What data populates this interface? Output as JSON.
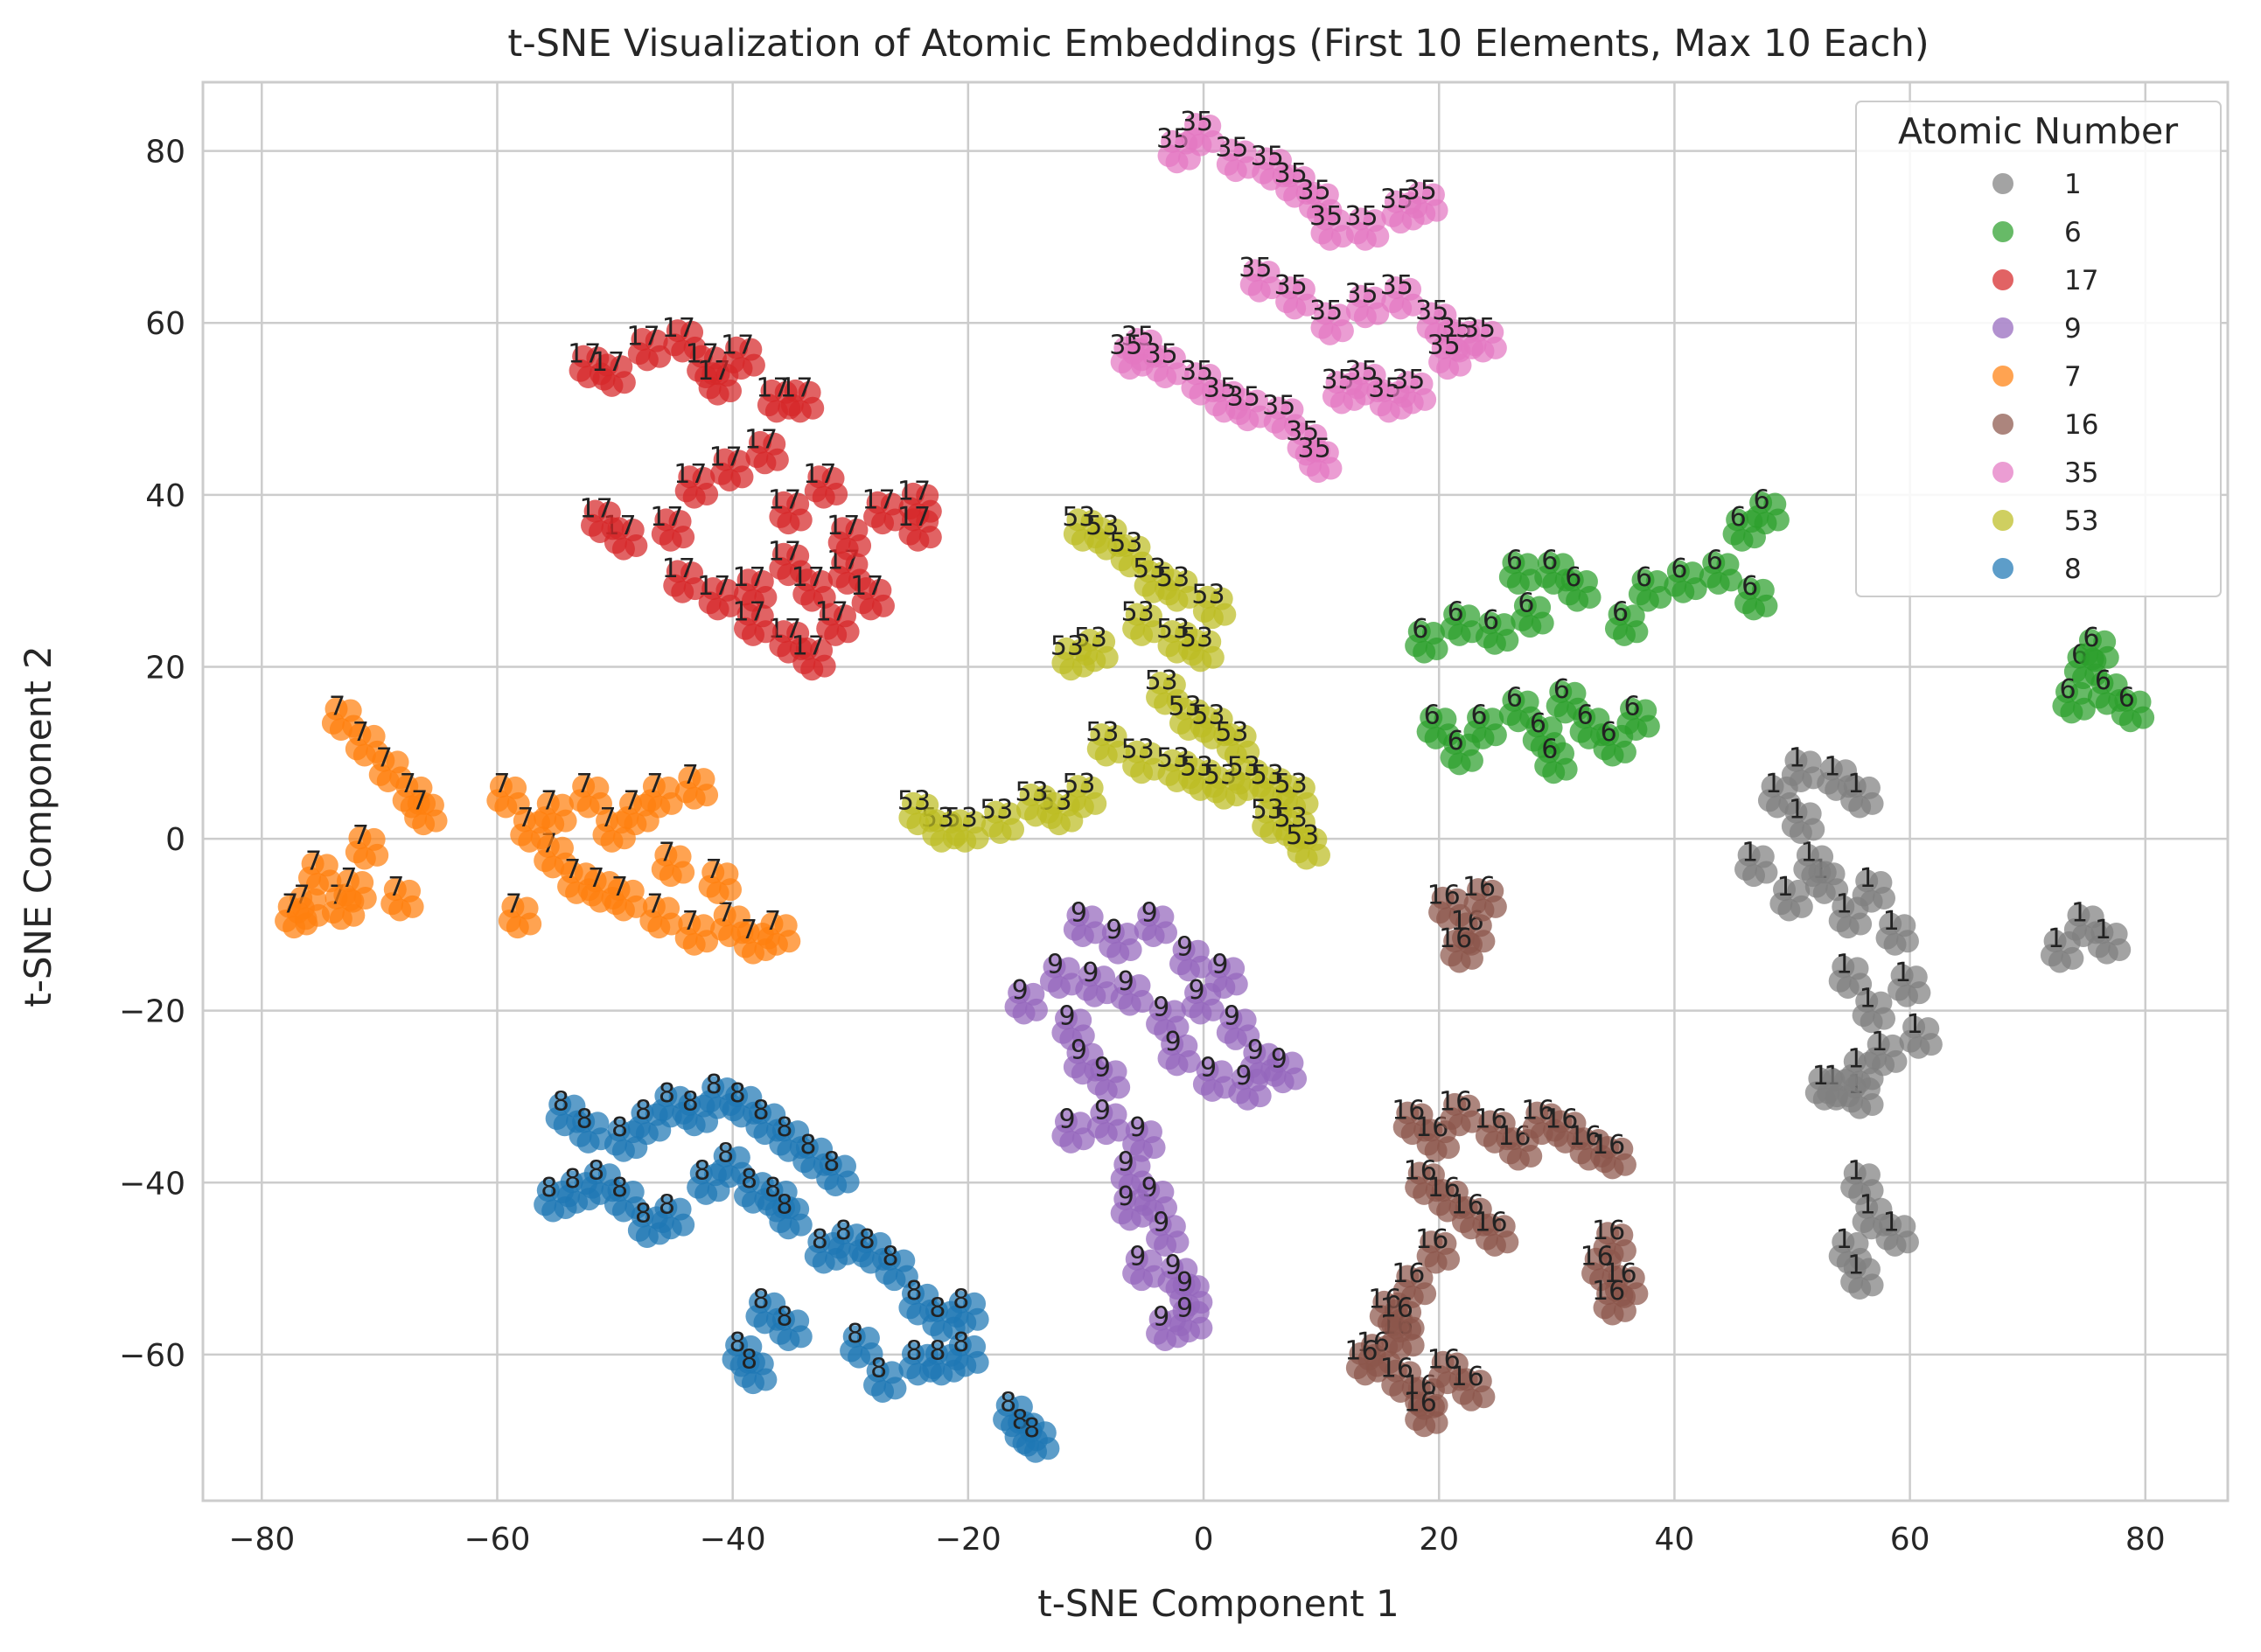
{
  "chart_data": {
    "type": "scatter",
    "title": "t-SNE Visualization of Atomic Embeddings (First 10 Elements, Max 10 Each)",
    "xlabel": "t-SNE Component 1",
    "ylabel": "t-SNE Component 2",
    "xlim": [
      -85,
      87
    ],
    "ylim": [
      -77,
      88
    ],
    "xticks": [
      -80,
      -60,
      -40,
      -20,
      0,
      20,
      40,
      60,
      80
    ],
    "yticks": [
      -60,
      -40,
      -20,
      0,
      20,
      40,
      60,
      80
    ],
    "xtick_labels": [
      "−80",
      "−60",
      "−40",
      "−20",
      "0",
      "20",
      "40",
      "60",
      "80"
    ],
    "ytick_labels": [
      "−60",
      "−40",
      "−20",
      "0",
      "20",
      "40",
      "60",
      "80"
    ],
    "grid": true,
    "legend": {
      "title": "Atomic Number",
      "placement": "top-right"
    },
    "series": [
      {
        "name": "1",
        "color": "#7f7f7f",
        "points": [
          [
            49,
            5
          ],
          [
            51,
            8
          ],
          [
            54,
            7
          ],
          [
            56,
            5
          ],
          [
            47,
            -3
          ],
          [
            50,
            -7
          ],
          [
            53,
            -5
          ],
          [
            55,
            -9
          ],
          [
            57,
            -6
          ],
          [
            59,
            -11
          ],
          [
            52,
            -3
          ],
          [
            51,
            2
          ],
          [
            55,
            -16
          ],
          [
            57,
            -20
          ],
          [
            60,
            -17
          ],
          [
            61,
            -23
          ],
          [
            58,
            -25
          ],
          [
            56,
            -30
          ],
          [
            54,
            -29
          ],
          [
            56,
            -40
          ],
          [
            57,
            -44
          ],
          [
            55,
            -48
          ],
          [
            59,
            -46
          ],
          [
            56,
            -51
          ],
          [
            73,
            -13
          ],
          [
            75,
            -10
          ],
          [
            77,
            -12
          ],
          [
            56,
            -27
          ],
          [
            53,
            -29
          ]
        ]
      },
      {
        "name": "6",
        "color": "#2ca02c",
        "points": [
          [
            19,
            23
          ],
          [
            22,
            25
          ],
          [
            25,
            24
          ],
          [
            28,
            26
          ],
          [
            30,
            31
          ],
          [
            27,
            31
          ],
          [
            32,
            29
          ],
          [
            36,
            25
          ],
          [
            38,
            29
          ],
          [
            41,
            30
          ],
          [
            44,
            31
          ],
          [
            47,
            28
          ],
          [
            48,
            38
          ],
          [
            46,
            36
          ],
          [
            20,
            13
          ],
          [
            22,
            10
          ],
          [
            24,
            13
          ],
          [
            27,
            15
          ],
          [
            29,
            12
          ],
          [
            31,
            16
          ],
          [
            33,
            13
          ],
          [
            35,
            11
          ],
          [
            37,
            14
          ],
          [
            30,
            9
          ],
          [
            75,
            20
          ],
          [
            77,
            17
          ],
          [
            79,
            15
          ],
          [
            74,
            16
          ],
          [
            76,
            22
          ]
        ]
      },
      {
        "name": "17",
        "color": "#d62728",
        "points": [
          [
            -52,
            55
          ],
          [
            -50,
            54
          ],
          [
            -47,
            57
          ],
          [
            -44,
            58
          ],
          [
            -42,
            55
          ],
          [
            -41,
            53
          ],
          [
            -39,
            56
          ],
          [
            -36,
            51
          ],
          [
            -34,
            51
          ],
          [
            -37,
            45
          ],
          [
            -40,
            43
          ],
          [
            -43,
            41
          ],
          [
            -45,
            36
          ],
          [
            -49,
            35
          ],
          [
            -51,
            37
          ],
          [
            -44,
            30
          ],
          [
            -41,
            28
          ],
          [
            -38,
            29
          ],
          [
            -35,
            32
          ],
          [
            -33,
            29
          ],
          [
            -30,
            31
          ],
          [
            -28,
            28
          ],
          [
            -30,
            35
          ],
          [
            -27,
            38
          ],
          [
            -24,
            39
          ],
          [
            -24,
            36
          ],
          [
            -35,
            23
          ],
          [
            -33,
            21
          ],
          [
            -31,
            25
          ],
          [
            -38,
            25
          ],
          [
            -35,
            38
          ],
          [
            -32,
            41
          ]
        ]
      },
      {
        "name": "9",
        "color": "#9467bd",
        "points": [
          [
            -10,
            -10
          ],
          [
            -7,
            -12
          ],
          [
            -4,
            -10
          ],
          [
            -1,
            -14
          ],
          [
            2,
            -16
          ],
          [
            -15,
            -19
          ],
          [
            -12,
            -16
          ],
          [
            -9,
            -17
          ],
          [
            -6,
            -18
          ],
          [
            -3,
            -21
          ],
          [
            0,
            -19
          ],
          [
            3,
            -22
          ],
          [
            5,
            -26
          ],
          [
            7,
            -27
          ],
          [
            4,
            -29
          ],
          [
            1,
            -28
          ],
          [
            -2,
            -25
          ],
          [
            -11,
            -22
          ],
          [
            -10,
            -26
          ],
          [
            -8,
            -28
          ],
          [
            -11,
            -34
          ],
          [
            -8,
            -33
          ],
          [
            -5,
            -35
          ],
          [
            -6,
            -39
          ],
          [
            -4,
            -42
          ],
          [
            -3,
            -46
          ],
          [
            -5,
            -50
          ],
          [
            -2,
            -51
          ],
          [
            -1,
            -53
          ],
          [
            -3,
            -57
          ],
          [
            -1,
            -56
          ],
          [
            -6,
            -43
          ]
        ]
      },
      {
        "name": "7",
        "color": "#ff7f0e",
        "points": [
          [
            -73,
            14
          ],
          [
            -71,
            11
          ],
          [
            -69,
            8
          ],
          [
            -67,
            5
          ],
          [
            -66,
            3
          ],
          [
            -75,
            -4
          ],
          [
            -73,
            -8
          ],
          [
            -76,
            -8
          ],
          [
            -77,
            -9
          ],
          [
            -72,
            -6
          ],
          [
            -68,
            -7
          ],
          [
            -71,
            -1
          ],
          [
            -58,
            -9
          ],
          [
            -55,
            3
          ],
          [
            -52,
            5
          ],
          [
            -50,
            1
          ],
          [
            -48,
            3
          ],
          [
            -46,
            5
          ],
          [
            -43,
            6
          ],
          [
            -55,
            -2
          ],
          [
            -53,
            -5
          ],
          [
            -51,
            -6
          ],
          [
            -49,
            -7
          ],
          [
            -46,
            -9
          ],
          [
            -43,
            -11
          ],
          [
            -40,
            -10
          ],
          [
            -38,
            -12
          ],
          [
            -36,
            -11
          ],
          [
            -59,
            5
          ],
          [
            -57,
            1
          ],
          [
            -45,
            -3
          ],
          [
            -41,
            -5
          ]
        ]
      },
      {
        "name": "16",
        "color": "#8c564b",
        "points": [
          [
            21,
            -8
          ],
          [
            23,
            -11
          ],
          [
            24,
            -7
          ],
          [
            22,
            -13
          ],
          [
            18,
            -33
          ],
          [
            20,
            -35
          ],
          [
            22,
            -32
          ],
          [
            25,
            -34
          ],
          [
            27,
            -36
          ],
          [
            29,
            -33
          ],
          [
            31,
            -34
          ],
          [
            33,
            -36
          ],
          [
            35,
            -37
          ],
          [
            19,
            -40
          ],
          [
            21,
            -42
          ],
          [
            23,
            -44
          ],
          [
            25,
            -46
          ],
          [
            20,
            -48
          ],
          [
            18,
            -52
          ],
          [
            16,
            -55
          ],
          [
            17,
            -58
          ],
          [
            15,
            -60
          ],
          [
            14,
            -61
          ],
          [
            17,
            -63
          ],
          [
            19,
            -65
          ],
          [
            21,
            -62
          ],
          [
            23,
            -64
          ],
          [
            19,
            -67
          ],
          [
            35,
            -47
          ],
          [
            34,
            -50
          ],
          [
            36,
            -52
          ],
          [
            35,
            -54
          ],
          [
            17,
            -56
          ]
        ]
      },
      {
        "name": "35",
        "color": "#e377c2",
        "points": [
          [
            -2,
            80
          ],
          [
            0,
            82
          ],
          [
            3,
            79
          ],
          [
            6,
            78
          ],
          [
            8,
            76
          ],
          [
            10,
            74
          ],
          [
            11,
            71
          ],
          [
            14,
            71
          ],
          [
            17,
            73
          ],
          [
            19,
            74
          ],
          [
            5,
            65
          ],
          [
            8,
            63
          ],
          [
            11,
            60
          ],
          [
            14,
            62
          ],
          [
            17,
            63
          ],
          [
            20,
            60
          ],
          [
            22,
            58
          ],
          [
            -5,
            57
          ],
          [
            -3,
            55
          ],
          [
            0,
            53
          ],
          [
            2,
            51
          ],
          [
            4,
            50
          ],
          [
            7,
            49
          ],
          [
            9,
            46
          ],
          [
            10,
            44
          ],
          [
            12,
            52
          ],
          [
            14,
            53
          ],
          [
            16,
            51
          ],
          [
            18,
            52
          ],
          [
            21,
            56
          ],
          [
            24,
            58
          ],
          [
            -6,
            56
          ]
        ]
      },
      {
        "name": "53",
        "color": "#bcbd22",
        "points": [
          [
            -10,
            36
          ],
          [
            -8,
            35
          ],
          [
            -6,
            33
          ],
          [
            -4,
            30
          ],
          [
            -2,
            29
          ],
          [
            1,
            27
          ],
          [
            -5,
            25
          ],
          [
            -2,
            23
          ],
          [
            0,
            22
          ],
          [
            -9,
            22
          ],
          [
            -11,
            21
          ],
          [
            -3,
            17
          ],
          [
            -1,
            14
          ],
          [
            1,
            13
          ],
          [
            3,
            11
          ],
          [
            -8,
            11
          ],
          [
            -5,
            9
          ],
          [
            -2,
            8
          ],
          [
            0,
            7
          ],
          [
            2,
            6
          ],
          [
            4,
            7
          ],
          [
            6,
            6
          ],
          [
            8,
            5
          ],
          [
            -10,
            5
          ],
          [
            -12,
            3
          ],
          [
            -14,
            4
          ],
          [
            -17,
            2
          ],
          [
            -20,
            1
          ],
          [
            -22,
            1
          ],
          [
            -24,
            3
          ],
          [
            6,
            2
          ],
          [
            8,
            1
          ],
          [
            9,
            -1
          ]
        ]
      },
      {
        "name": "8",
        "color": "#1f77b4",
        "points": [
          [
            -54,
            -32
          ],
          [
            -52,
            -34
          ],
          [
            -49,
            -35
          ],
          [
            -47,
            -33
          ],
          [
            -45,
            -31
          ],
          [
            -43,
            -32
          ],
          [
            -41,
            -30
          ],
          [
            -39,
            -31
          ],
          [
            -37,
            -33
          ],
          [
            -35,
            -35
          ],
          [
            -33,
            -37
          ],
          [
            -31,
            -39
          ],
          [
            -55,
            -42
          ],
          [
            -53,
            -41
          ],
          [
            -51,
            -40
          ],
          [
            -49,
            -42
          ],
          [
            -47,
            -45
          ],
          [
            -45,
            -44
          ],
          [
            -42,
            -40
          ],
          [
            -40,
            -38
          ],
          [
            -38,
            -41
          ],
          [
            -36,
            -42
          ],
          [
            -35,
            -44
          ],
          [
            -32,
            -48
          ],
          [
            -30,
            -47
          ],
          [
            -28,
            -48
          ],
          [
            -26,
            -50
          ],
          [
            -24,
            -54
          ],
          [
            -22,
            -56
          ],
          [
            -20,
            -55
          ],
          [
            -37,
            -55
          ],
          [
            -35,
            -57
          ],
          [
            -39,
            -60
          ],
          [
            -38,
            -62
          ],
          [
            -29,
            -59
          ],
          [
            -27,
            -63
          ],
          [
            -24,
            -61
          ],
          [
            -22,
            -61
          ],
          [
            -20,
            -60
          ],
          [
            -16,
            -67
          ],
          [
            -15,
            -69
          ],
          [
            -14,
            -70
          ]
        ]
      }
    ]
  }
}
